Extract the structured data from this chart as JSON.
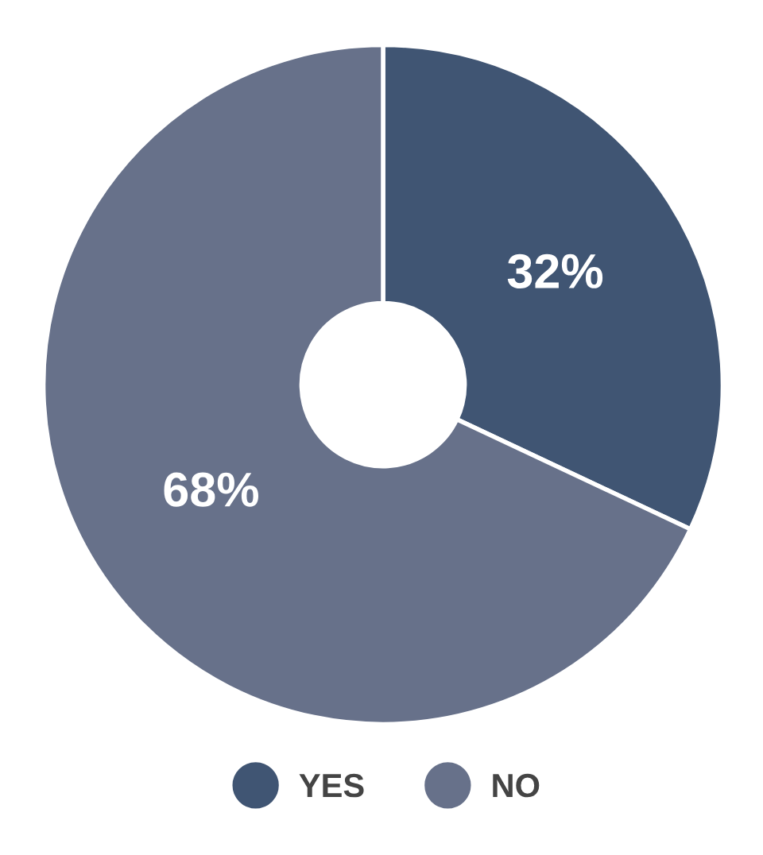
{
  "chart_data": {
    "type": "donut",
    "categories": [
      "YES",
      "NO"
    ],
    "values": [
      32,
      68
    ],
    "colors": [
      "#405573",
      "#67718a"
    ],
    "value_labels": [
      "32%",
      "68%"
    ],
    "legend": "bottom"
  }
}
